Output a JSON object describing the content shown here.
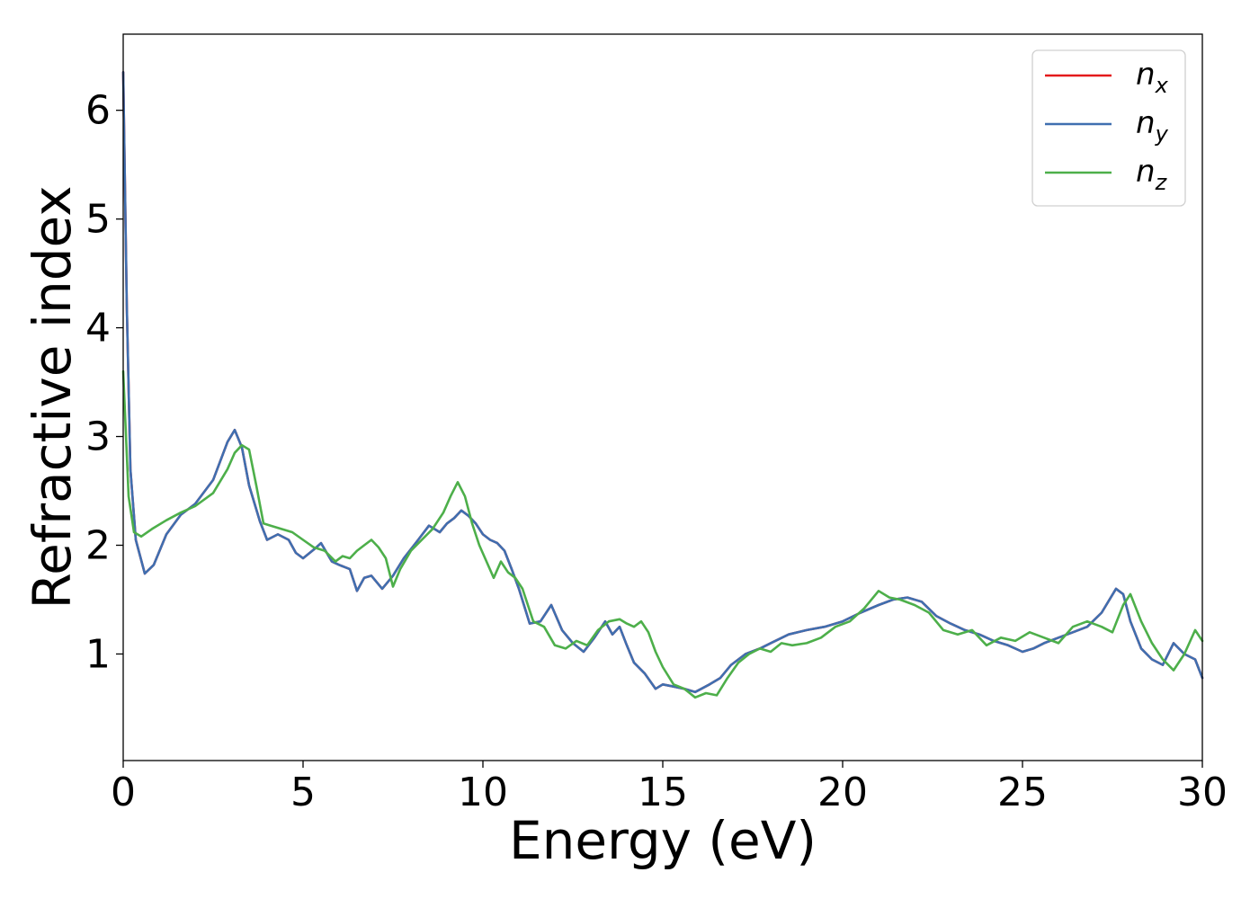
{
  "chart_data": {
    "type": "line",
    "title": "",
    "xlabel": "Energy (eV)",
    "ylabel": "Refractive index",
    "xlim": [
      0,
      30
    ],
    "ylim": [
      0.02,
      6.7
    ],
    "xticks": [
      "0",
      "5",
      "10",
      "15",
      "20",
      "25",
      "30"
    ],
    "yticks": [
      "1",
      "2",
      "3",
      "4",
      "5",
      "6"
    ],
    "grid": false,
    "legend_position": "top-right",
    "series": [
      {
        "name": "n",
        "subscript": "x",
        "color": "#e41a1c",
        "x": [
          0,
          0.1,
          0.2,
          0.35,
          0.6,
          0.85,
          1.2,
          1.6,
          2.0,
          2.5,
          2.9,
          3.1,
          3.3,
          3.5,
          3.8,
          4.0,
          4.3,
          4.6,
          4.8,
          5.0,
          5.3,
          5.5,
          5.8,
          6.0,
          6.3,
          6.5,
          6.7,
          6.9,
          7.2,
          7.5,
          7.8,
          8.2,
          8.5,
          8.8,
          9.0,
          9.2,
          9.4,
          9.6,
          9.8,
          10.0,
          10.2,
          10.4,
          10.6,
          10.8,
          11.0,
          11.3,
          11.6,
          11.9,
          12.2,
          12.5,
          12.8,
          13.1,
          13.4,
          13.6,
          13.8,
          14.0,
          14.2,
          14.5,
          14.8,
          15.0,
          15.3,
          15.6,
          15.9,
          16.3,
          16.6,
          16.9,
          17.3,
          17.7,
          18.0,
          18.5,
          19.0,
          19.5,
          20.0,
          20.5,
          21.0,
          21.4,
          21.8,
          22.2,
          22.6,
          23.0,
          23.4,
          23.8,
          24.2,
          24.6,
          25.0,
          25.3,
          25.6,
          26.0,
          26.4,
          26.8,
          27.2,
          27.6,
          27.8,
          28.0,
          28.3,
          28.6,
          28.9,
          29.2,
          29.5,
          29.8,
          30.0
        ],
        "y": [
          6.35,
          4.2,
          2.7,
          2.05,
          1.74,
          1.82,
          2.1,
          2.28,
          2.38,
          2.6,
          2.95,
          3.06,
          2.9,
          2.55,
          2.22,
          2.05,
          2.1,
          2.05,
          1.93,
          1.88,
          1.96,
          2.02,
          1.85,
          1.82,
          1.78,
          1.58,
          1.7,
          1.72,
          1.6,
          1.72,
          1.88,
          2.05,
          2.18,
          2.12,
          2.2,
          2.25,
          2.32,
          2.27,
          2.2,
          2.1,
          2.05,
          2.02,
          1.95,
          1.78,
          1.6,
          1.28,
          1.3,
          1.45,
          1.22,
          1.1,
          1.02,
          1.15,
          1.3,
          1.18,
          1.25,
          1.08,
          0.92,
          0.82,
          0.68,
          0.72,
          0.7,
          0.68,
          0.65,
          0.72,
          0.78,
          0.9,
          1.0,
          1.05,
          1.1,
          1.18,
          1.22,
          1.25,
          1.3,
          1.38,
          1.45,
          1.5,
          1.52,
          1.48,
          1.35,
          1.28,
          1.22,
          1.18,
          1.12,
          1.08,
          1.02,
          1.05,
          1.1,
          1.15,
          1.2,
          1.25,
          1.38,
          1.6,
          1.55,
          1.3,
          1.05,
          0.95,
          0.9,
          1.1,
          1.0,
          0.95,
          0.78
        ]
      },
      {
        "name": "n",
        "subscript": "y",
        "color": "#3f6fb0",
        "x": [
          0,
          0.1,
          0.2,
          0.35,
          0.6,
          0.85,
          1.2,
          1.6,
          2.0,
          2.5,
          2.9,
          3.1,
          3.3,
          3.5,
          3.8,
          4.0,
          4.3,
          4.6,
          4.8,
          5.0,
          5.3,
          5.5,
          5.8,
          6.0,
          6.3,
          6.5,
          6.7,
          6.9,
          7.2,
          7.5,
          7.8,
          8.2,
          8.5,
          8.8,
          9.0,
          9.2,
          9.4,
          9.6,
          9.8,
          10.0,
          10.2,
          10.4,
          10.6,
          10.8,
          11.0,
          11.3,
          11.6,
          11.9,
          12.2,
          12.5,
          12.8,
          13.1,
          13.4,
          13.6,
          13.8,
          14.0,
          14.2,
          14.5,
          14.8,
          15.0,
          15.3,
          15.6,
          15.9,
          16.3,
          16.6,
          16.9,
          17.3,
          17.7,
          18.0,
          18.5,
          19.0,
          19.5,
          20.0,
          20.5,
          21.0,
          21.4,
          21.8,
          22.2,
          22.6,
          23.0,
          23.4,
          23.8,
          24.2,
          24.6,
          25.0,
          25.3,
          25.6,
          26.0,
          26.4,
          26.8,
          27.2,
          27.6,
          27.8,
          28.0,
          28.3,
          28.6,
          28.9,
          29.2,
          29.5,
          29.8,
          30.0
        ],
        "y": [
          6.35,
          4.2,
          2.7,
          2.05,
          1.74,
          1.82,
          2.1,
          2.28,
          2.38,
          2.6,
          2.95,
          3.06,
          2.9,
          2.55,
          2.22,
          2.05,
          2.1,
          2.05,
          1.93,
          1.88,
          1.96,
          2.02,
          1.85,
          1.82,
          1.78,
          1.58,
          1.7,
          1.72,
          1.6,
          1.72,
          1.88,
          2.05,
          2.18,
          2.12,
          2.2,
          2.25,
          2.32,
          2.27,
          2.2,
          2.1,
          2.05,
          2.02,
          1.95,
          1.78,
          1.6,
          1.28,
          1.3,
          1.45,
          1.22,
          1.1,
          1.02,
          1.15,
          1.3,
          1.18,
          1.25,
          1.08,
          0.92,
          0.82,
          0.68,
          0.72,
          0.7,
          0.68,
          0.65,
          0.72,
          0.78,
          0.9,
          1.0,
          1.05,
          1.1,
          1.18,
          1.22,
          1.25,
          1.3,
          1.38,
          1.45,
          1.5,
          1.52,
          1.48,
          1.35,
          1.28,
          1.22,
          1.18,
          1.12,
          1.08,
          1.02,
          1.05,
          1.1,
          1.15,
          1.2,
          1.25,
          1.38,
          1.6,
          1.55,
          1.3,
          1.05,
          0.95,
          0.9,
          1.1,
          1.0,
          0.95,
          0.78
        ]
      },
      {
        "name": "n",
        "subscript": "z",
        "color": "#4daf4a",
        "x": [
          0,
          0.15,
          0.3,
          0.5,
          0.8,
          1.2,
          1.6,
          2.0,
          2.5,
          2.9,
          3.1,
          3.3,
          3.5,
          3.7,
          3.9,
          4.1,
          4.4,
          4.7,
          5.0,
          5.3,
          5.6,
          5.9,
          6.1,
          6.3,
          6.5,
          6.7,
          6.9,
          7.1,
          7.3,
          7.5,
          7.7,
          8.0,
          8.3,
          8.6,
          8.9,
          9.1,
          9.3,
          9.5,
          9.7,
          9.9,
          10.1,
          10.3,
          10.5,
          10.7,
          10.9,
          11.1,
          11.4,
          11.7,
          12.0,
          12.3,
          12.6,
          12.9,
          13.2,
          13.5,
          13.8,
          14.0,
          14.2,
          14.4,
          14.6,
          14.8,
          15.0,
          15.3,
          15.6,
          15.9,
          16.2,
          16.5,
          16.8,
          17.1,
          17.4,
          17.7,
          18.0,
          18.3,
          18.6,
          19.0,
          19.4,
          19.8,
          20.2,
          20.6,
          21.0,
          21.3,
          21.6,
          22.0,
          22.4,
          22.8,
          23.2,
          23.6,
          24.0,
          24.4,
          24.8,
          25.2,
          25.6,
          26.0,
          26.4,
          26.8,
          27.2,
          27.5,
          27.8,
          28.0,
          28.3,
          28.6,
          28.9,
          29.2,
          29.5,
          29.8,
          30.0
        ],
        "y": [
          3.6,
          2.45,
          2.12,
          2.08,
          2.15,
          2.23,
          2.3,
          2.36,
          2.48,
          2.7,
          2.85,
          2.92,
          2.88,
          2.55,
          2.2,
          2.18,
          2.15,
          2.12,
          2.05,
          1.98,
          1.95,
          1.85,
          1.9,
          1.88,
          1.95,
          2.0,
          2.05,
          1.98,
          1.88,
          1.62,
          1.78,
          1.95,
          2.05,
          2.15,
          2.3,
          2.45,
          2.58,
          2.45,
          2.2,
          2.0,
          1.85,
          1.7,
          1.85,
          1.75,
          1.7,
          1.6,
          1.3,
          1.25,
          1.08,
          1.05,
          1.12,
          1.08,
          1.22,
          1.3,
          1.32,
          1.28,
          1.25,
          1.3,
          1.2,
          1.02,
          0.88,
          0.72,
          0.68,
          0.6,
          0.64,
          0.62,
          0.78,
          0.92,
          1.0,
          1.05,
          1.02,
          1.1,
          1.08,
          1.1,
          1.15,
          1.25,
          1.3,
          1.42,
          1.58,
          1.52,
          1.5,
          1.45,
          1.38,
          1.22,
          1.18,
          1.22,
          1.08,
          1.15,
          1.12,
          1.2,
          1.15,
          1.1,
          1.25,
          1.3,
          1.25,
          1.2,
          1.45,
          1.55,
          1.3,
          1.1,
          0.95,
          0.85,
          1.0,
          1.22,
          1.12
        ]
      }
    ]
  }
}
